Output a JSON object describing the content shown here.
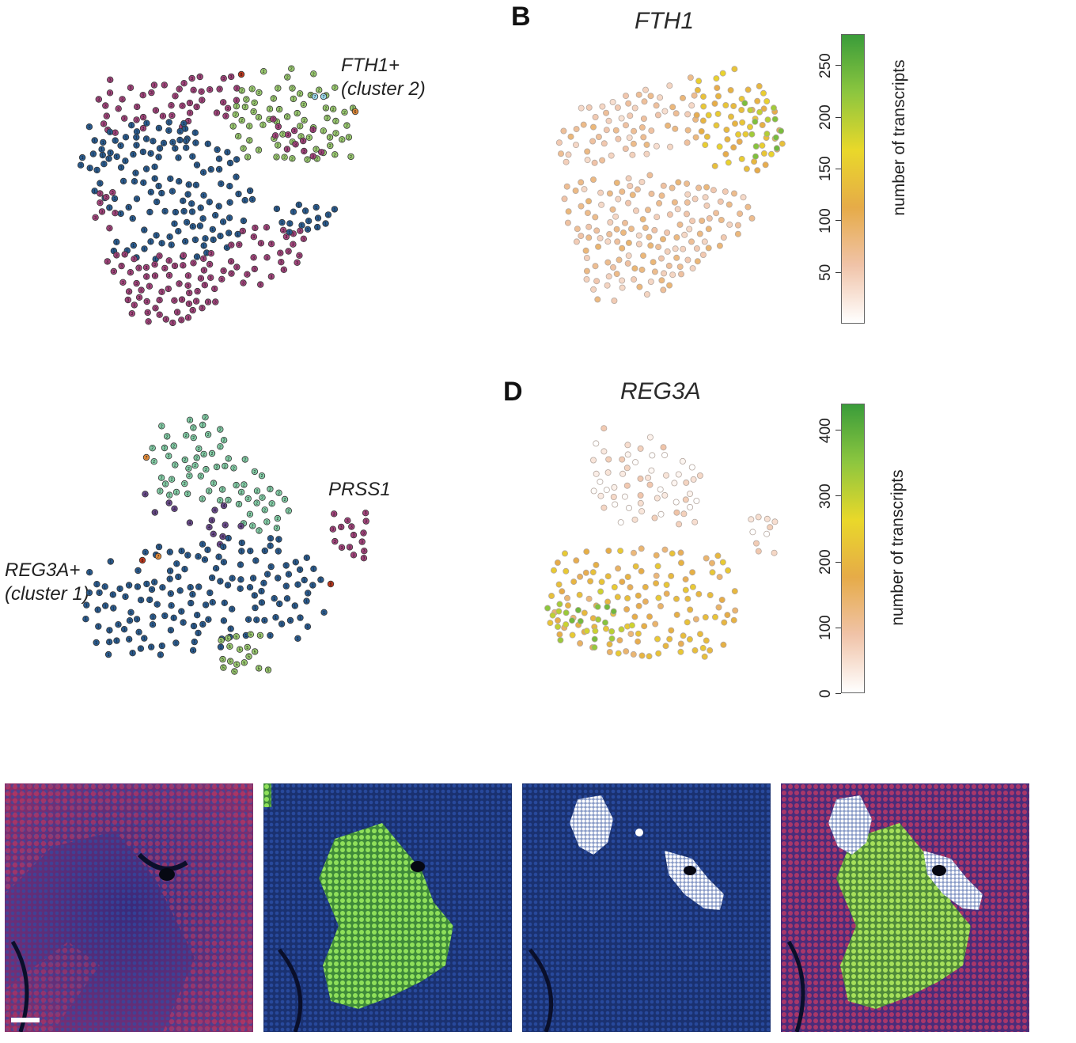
{
  "panels": {
    "a": {
      "annotations": {
        "fth1_line1": "FTH1+",
        "fth1_line2": "(cluster 2)"
      }
    },
    "b": {
      "letter": "B",
      "gene": "FTH1",
      "colorbar": {
        "label": "number of transcripts",
        "ticks": [
          "50",
          "100",
          "150",
          "200",
          "250"
        ],
        "range": [
          0,
          280
        ]
      }
    },
    "c": {
      "annotations": {
        "prss1": "PRSS1",
        "reg3a_line1": "REG3A+",
        "reg3a_line2": "(cluster 1)"
      }
    },
    "d": {
      "letter": "D",
      "gene": "REG3A",
      "colorbar": {
        "label": "number of transcripts",
        "ticks": [
          "0",
          "100",
          "200",
          "300",
          "400"
        ],
        "range": [
          0,
          440
        ]
      }
    }
  },
  "colors": {
    "cluster_blue": "#2a5b8e",
    "cluster_magenta": "#a5467e",
    "cluster_green": "#9ccc72",
    "cluster_teal": "#85cfa8",
    "cluster_purple": "#6a4b8c",
    "cluster_orange": "#e08a3a",
    "cluster_red": "#c0391e",
    "cluster_cyan": "#9ad6e8",
    "gradient": [
      "#ffffff",
      "#f0c3a8",
      "#e6ab48",
      "#e9d82a",
      "#8cc63f",
      "#3a9c3a"
    ]
  },
  "micrographs": [
    {
      "name": "red-channel",
      "stain": "red"
    },
    {
      "name": "green-channel",
      "stain": "green"
    },
    {
      "name": "white-channel",
      "stain": "white"
    },
    {
      "name": "merge",
      "stain": "merge"
    }
  ]
}
